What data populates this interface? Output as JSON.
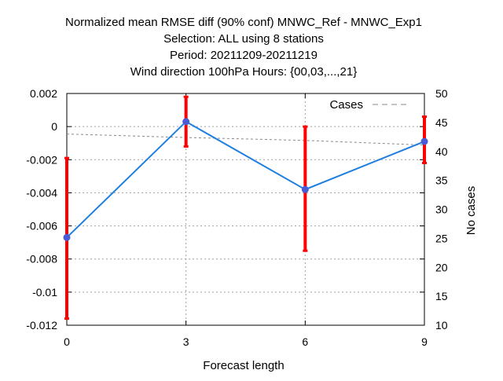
{
  "chart_data": {
    "type": "line",
    "title_lines": [
      "Normalized mean RMSE diff (90% conf) MNWC_Ref - MNWC_Exp1",
      "Selection: ALL using      8 stations",
      "Period: 20211209-20211219",
      "Wind direction 100hPa   Hours: {00,03,...,21}"
    ],
    "xlabel": "Forecast length",
    "ylabel": "",
    "y2label": "No cases",
    "x": [
      0,
      3,
      6,
      9
    ],
    "xticks": [
      0,
      3,
      6,
      9
    ],
    "xlim": [
      0,
      9
    ],
    "ylim": [
      -0.012,
      0.002
    ],
    "yticks": [
      0.002,
      0,
      -0.002,
      -0.004,
      -0.006,
      -0.008,
      -0.01,
      -0.012
    ],
    "ytick_labels": [
      "0.002",
      "0",
      "-0.002",
      "-0.004",
      "-0.006",
      "-0.008",
      "-0.01",
      "-0.012"
    ],
    "y2lim": [
      10,
      50
    ],
    "y2ticks": [
      50,
      45,
      40,
      35,
      30,
      25,
      20,
      15,
      10
    ],
    "grid": true,
    "series": [
      {
        "name": "",
        "kind": "mean_diff",
        "values": [
          -0.0067,
          0.0003,
          -0.0038,
          -0.0009
        ],
        "err_low": [
          -0.0116,
          -0.0012,
          -0.0075,
          -0.0022
        ],
        "err_high": [
          -0.0019,
          0.0018,
          0.0,
          0.0006
        ],
        "color": "#1f7fe0",
        "marker_color": "#4a5bd4",
        "errorbar_color": "#ff0000"
      },
      {
        "name": "Cases",
        "kind": "cases",
        "axis": "y2",
        "values": [
          43,
          42.4,
          41.9,
          41.1
        ],
        "color": "#888888",
        "dash": true
      }
    ],
    "legend": {
      "position": "top-right",
      "entries": [
        "Cases"
      ]
    }
  }
}
